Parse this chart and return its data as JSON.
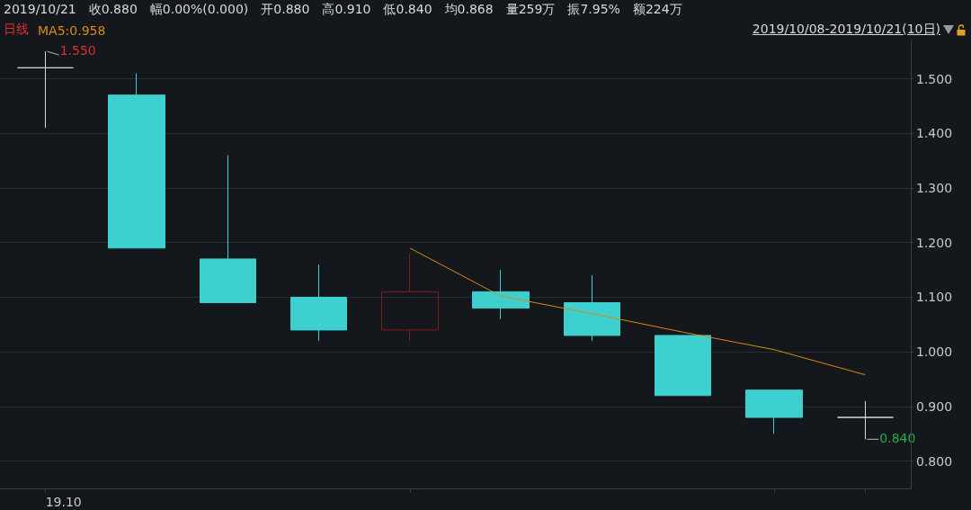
{
  "chart_data": {
    "type": "candlestick",
    "categories": [
      "19.10",
      null,
      null,
      null,
      null,
      null,
      null,
      null,
      null,
      null
    ],
    "ohlc": [
      [
        1.52,
        1.55,
        1.41,
        1.52
      ],
      [
        1.47,
        1.51,
        1.19,
        1.19
      ],
      [
        1.17,
        1.36,
        1.09,
        1.09
      ],
      [
        1.1,
        1.16,
        1.02,
        1.04
      ],
      [
        1.04,
        1.18,
        1.02,
        1.11
      ],
      [
        1.11,
        1.15,
        1.06,
        1.08
      ],
      [
        1.09,
        1.14,
        1.02,
        1.03
      ],
      [
        1.03,
        1.03,
        0.92,
        0.92
      ],
      [
        0.93,
        0.93,
        0.85,
        0.88
      ],
      [
        0.88,
        0.91,
        0.84,
        0.88
      ]
    ],
    "colors": [
      "#d8d8d8",
      "#3ecfcf",
      "#3ecfcf",
      "#3ecfcf",
      "#8b1a1a",
      "#3ecfcf",
      "#3ecfcf",
      "#3ecfcf",
      "#3ecfcf",
      "#d8d8d8"
    ],
    "series": [
      {
        "type": "line",
        "name": "MA5:0.958",
        "color": "#d98a12",
        "values": [
          null,
          null,
          null,
          null,
          1.19,
          1.102,
          1.07,
          1.036,
          1.004,
          0.958
        ]
      }
    ],
    "ylim": [
      0.75,
      1.57
    ],
    "yticks": [
      {
        "value": 0.8,
        "label": "0.800"
      },
      {
        "value": 0.9,
        "label": "0.900"
      },
      {
        "value": 1.0,
        "label": "1.000"
      },
      {
        "value": 1.1,
        "label": "1.100"
      },
      {
        "value": 1.2,
        "label": "1.200"
      },
      {
        "value": 1.3,
        "label": "1.300"
      },
      {
        "value": 1.4,
        "label": "1.400"
      },
      {
        "value": 1.5,
        "label": "1.500"
      }
    ],
    "grid": "y",
    "legend": "top left",
    "marker": "none",
    "annotations": [
      "2019/10/21",
      "收0.880",
      "幅0.00%(0.000)",
      "开0.880",
      "高0.910",
      "低0.840",
      "均0.868",
      "量259万",
      "振7.95%",
      "额224万",
      "日线",
      "2019/10/08-2019/10/21(10日)",
      "1.550",
      "0.840"
    ]
  }
}
